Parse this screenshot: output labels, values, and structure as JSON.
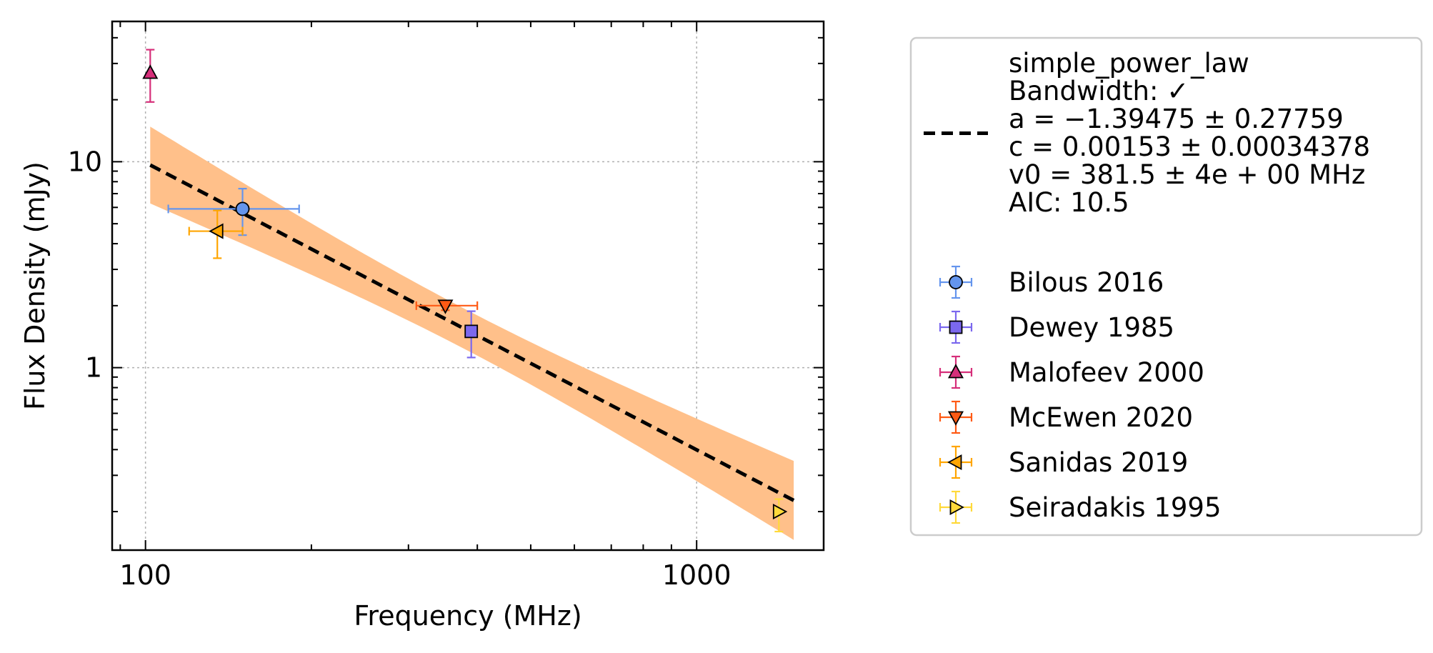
{
  "chart_data": {
    "type": "scatter",
    "title": "",
    "xlabel": "Frequency (MHz)",
    "ylabel": "Flux Density (mJy)",
    "xscale": "log",
    "yscale": "log",
    "xlim": [
      87,
      1700
    ],
    "ylim": [
      0.13,
      48
    ],
    "xticks": [
      {
        "value": 100,
        "label": "100"
      },
      {
        "value": 1000,
        "label": "1000"
      }
    ],
    "yticks": [
      {
        "value": 1,
        "label": "1"
      },
      {
        "value": 10,
        "label": "10"
      }
    ],
    "grid": true,
    "legend_position": "outside right",
    "fit": {
      "model": "simple_power_law",
      "legend_lines": [
        "simple_power_law",
        "Bandwidth: ✓",
        "a = −1.39475 ± 0.27759",
        "c = 0.00153 ± 0.00034378",
        "v0 = 381.5 ± 4e + 00 MHz",
        "AIC: 10.5"
      ],
      "a": -1.39475,
      "c": 0.00153,
      "v0": 381.5,
      "x_range": [
        102,
        1500
      ],
      "line_color": "#000000",
      "band_color": "#ffc08a"
    },
    "series": [
      {
        "name": "Bilous 2016",
        "marker": "circle",
        "color": "#6495ed",
        "edge": "#6495ed",
        "points": [
          {
            "x": 150,
            "y": 5.9,
            "xerr": [
              40,
              40
            ],
            "yerr": [
              1.5,
              1.5
            ]
          }
        ]
      },
      {
        "name": "Dewey 1985",
        "marker": "square",
        "color": "#7b68ee",
        "edge": "#7b68ee",
        "points": [
          {
            "x": 390,
            "y": 1.5,
            "xerr": [
              0,
              0
            ],
            "yerr": [
              0.38,
              0.38
            ]
          }
        ]
      },
      {
        "name": "Malofeev 2000",
        "marker": "triangle-up",
        "color": "#d62f7a",
        "edge": "#d62f7a",
        "points": [
          {
            "x": 102,
            "y": 27,
            "xerr": [
              0,
              0
            ],
            "yerr": [
              7.5,
              8
            ]
          }
        ]
      },
      {
        "name": "McEwen 2020",
        "marker": "triangle-down",
        "color": "#ff5a14",
        "edge": "#ff5a14",
        "points": [
          {
            "x": 350,
            "y": 2.0,
            "xerr": [
              40,
              50
            ],
            "yerr": [
              0.1,
              0.1
            ]
          }
        ]
      },
      {
        "name": "Sanidas 2019",
        "marker": "triangle-left",
        "color": "#ffa500",
        "edge": "#ffa500",
        "points": [
          {
            "x": 135,
            "y": 4.6,
            "xerr": [
              15,
              15
            ],
            "yerr": [
              1.2,
              1.2
            ]
          }
        ]
      },
      {
        "name": "Seiradakis 1995",
        "marker": "triangle-right",
        "color": "#ffd93a",
        "edge": "#ffd93a",
        "points": [
          {
            "x": 1410,
            "y": 0.2,
            "xerr": [
              0,
              0
            ],
            "yerr": [
              0.04,
              0.03
            ]
          }
        ]
      }
    ]
  }
}
